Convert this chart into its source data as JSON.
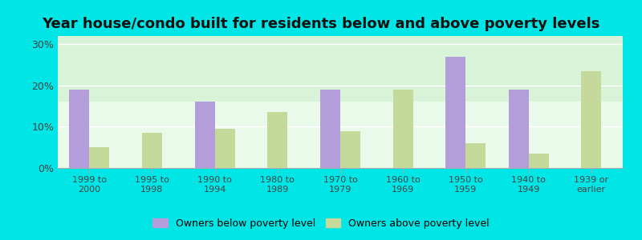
{
  "title": "Year house/condo built for residents below and above poverty levels",
  "categories": [
    "1999 to\n2000",
    "1995 to\n1998",
    "1990 to\n1994",
    "1980 to\n1989",
    "1970 to\n1979",
    "1960 to\n1969",
    "1950 to\n1959",
    "1940 to\n1949",
    "1939 or\nearlier"
  ],
  "below_poverty": [
    19.0,
    0.0,
    16.0,
    0.0,
    19.0,
    0.0,
    27.0,
    19.0,
    0.0
  ],
  "above_poverty": [
    5.0,
    8.5,
    9.5,
    13.5,
    9.0,
    19.0,
    6.0,
    3.5,
    23.5
  ],
  "below_color": "#b39ddb",
  "above_color": "#c5d99a",
  "background_color": "#e8fae8",
  "outer_background": "#00e5e5",
  "ylim": [
    0,
    32
  ],
  "yticks": [
    0,
    10,
    20,
    30
  ],
  "ytick_labels": [
    "0%",
    "10%",
    "20%",
    "30%"
  ],
  "legend_below": "Owners below poverty level",
  "legend_above": "Owners above poverty level",
  "title_fontsize": 13,
  "bar_width": 0.32,
  "figsize": [
    8.0,
    3.0
  ],
  "dpi": 100
}
